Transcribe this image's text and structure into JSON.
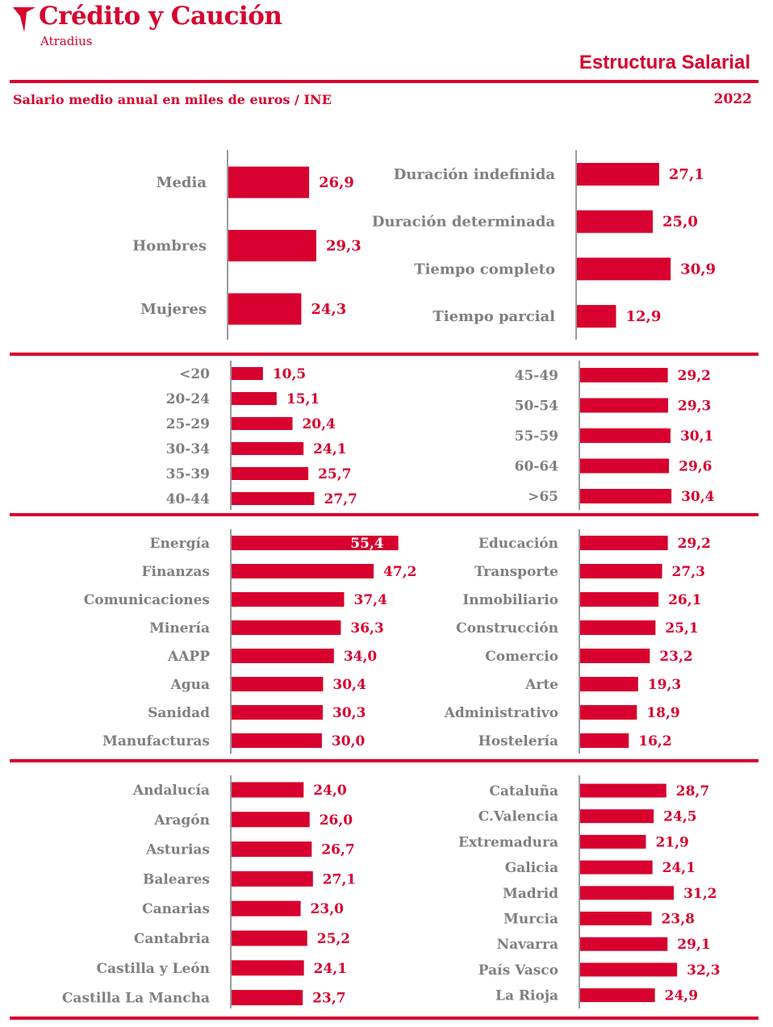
{
  "header": {
    "brand": "Crédito y Caución",
    "brand_sub": "Atradius",
    "report_title": "Estructura Salarial",
    "subtitle": "Salario medio anual en miles de euros / INE",
    "year": "2022"
  },
  "colors": {
    "accent": "#d7002e",
    "label": "#7f7f7f",
    "axis": "#9a9a9a"
  },
  "icons": {
    "logo": "atradius-arrow-icon"
  },
  "chart_data": [
    {
      "id": "sexo",
      "type": "bar",
      "orientation": "horizontal",
      "title": "",
      "categories": [
        "Media",
        "Hombres",
        "Mujeres"
      ],
      "values": [
        26.9,
        29.3,
        24.3
      ],
      "labels": [
        "26,9",
        "29,3",
        "24,3"
      ]
    },
    {
      "id": "contrato",
      "type": "bar",
      "orientation": "horizontal",
      "title": "",
      "categories": [
        "Duración indefinida",
        "Duración determinada",
        "Tiempo completo",
        "Tiempo parcial"
      ],
      "values": [
        27.1,
        25.0,
        30.9,
        12.9
      ],
      "labels": [
        "27,1",
        "25,0",
        "30,9",
        "12,9"
      ]
    },
    {
      "id": "edad-1",
      "type": "bar",
      "orientation": "horizontal",
      "title": "",
      "categories": [
        "<20",
        "20-24",
        "25-29",
        "30-34",
        "35-39",
        "40-44"
      ],
      "values": [
        10.5,
        15.1,
        20.4,
        24.1,
        25.7,
        27.7
      ],
      "labels": [
        "10,5",
        "15,1",
        "20,4",
        "24,1",
        "25,7",
        "27,7"
      ]
    },
    {
      "id": "edad-2",
      "type": "bar",
      "orientation": "horizontal",
      "title": "",
      "categories": [
        "45-49",
        "50-54",
        "55-59",
        "60-64",
        ">65"
      ],
      "values": [
        29.2,
        29.3,
        30.1,
        29.6,
        30.4
      ],
      "labels": [
        "29,2",
        "29,3",
        "30,1",
        "29,6",
        "30,4"
      ]
    },
    {
      "id": "sector-1",
      "type": "bar",
      "orientation": "horizontal",
      "title": "",
      "categories": [
        "Energía",
        "Finanzas",
        "Comunicaciones",
        "Minería",
        "AAPP",
        "Agua",
        "Sanidad",
        "Manufacturas"
      ],
      "values": [
        55.4,
        47.2,
        37.4,
        36.3,
        34.0,
        30.4,
        30.3,
        30.0
      ],
      "labels": [
        "55,4",
        "47,2",
        "37,4",
        "36,3",
        "34,0",
        "30,4",
        "30,3",
        "30,0"
      ]
    },
    {
      "id": "sector-2",
      "type": "bar",
      "orientation": "horizontal",
      "title": "",
      "categories": [
        "Educación",
        "Transporte",
        "Inmobiliario",
        "Construcción",
        "Comercio",
        "Arte",
        "Administrativo",
        "Hostelería"
      ],
      "values": [
        29.2,
        27.3,
        26.1,
        25.1,
        23.2,
        19.3,
        18.9,
        16.2
      ],
      "labels": [
        "29,2",
        "27,3",
        "26,1",
        "25,1",
        "23,2",
        "19,3",
        "18,9",
        "16,2"
      ]
    },
    {
      "id": "region-1",
      "type": "bar",
      "orientation": "horizontal",
      "title": "",
      "categories": [
        "Andalucía",
        "Aragón",
        "Asturias",
        "Baleares",
        "Canarias",
        "Cantabria",
        "Castilla y León",
        "Castilla La Mancha"
      ],
      "values": [
        24.0,
        26.0,
        26.7,
        27.1,
        23.0,
        25.2,
        24.1,
        23.7
      ],
      "labels": [
        "24,0",
        "26,0",
        "26,7",
        "27,1",
        "23,0",
        "25,2",
        "24,1",
        "23,7"
      ]
    },
    {
      "id": "region-2",
      "type": "bar",
      "orientation": "horizontal",
      "title": "",
      "categories": [
        "Cataluña",
        "C.Valencia",
        "Extremadura",
        "Galicia",
        "Madrid",
        "Murcia",
        "Navarra",
        "País Vasco",
        "La Rioja"
      ],
      "values": [
        28.7,
        24.5,
        21.9,
        24.1,
        31.2,
        23.8,
        29.1,
        32.3,
        24.9
      ],
      "labels": [
        "28,7",
        "24,5",
        "21,9",
        "24,1",
        "31,2",
        "23,8",
        "29,1",
        "32,3",
        "24,9"
      ]
    }
  ]
}
